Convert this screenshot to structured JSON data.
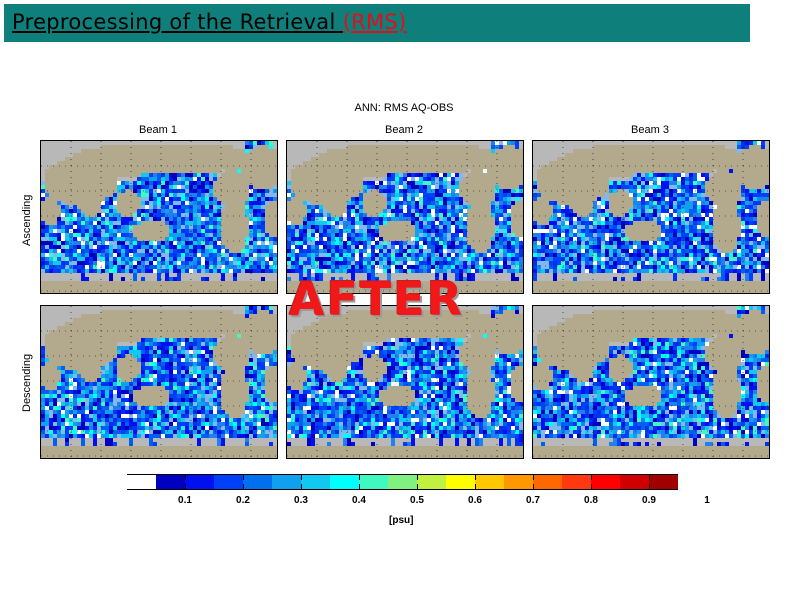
{
  "header": {
    "title": "Preprocessing of the Retrieval ",
    "title_highlight": "(RMS)",
    "bar_color": "#0f7f7b",
    "highlight_color": "#e0101a"
  },
  "figure": {
    "title": "ANN: RMS AQ-OBS",
    "columns": [
      "Beam 1",
      "Beam 2",
      "Beam 3"
    ],
    "rows": [
      "Ascending",
      "Descending"
    ],
    "overlay_text": "AFTER",
    "land_color": "#b3a98c",
    "no_data_color": "#b8b8b8"
  },
  "colorbar": {
    "unit": "[psu]",
    "tick_labels": [
      "0.1",
      "0.2",
      "0.3",
      "0.4",
      "0.5",
      "0.6",
      "0.7",
      "0.8",
      "0.9",
      "1"
    ],
    "colors": [
      "#ffffff",
      "#0000c0",
      "#0010f0",
      "#0040f8",
      "#0070f0",
      "#10a0f0",
      "#10c8f0",
      "#00ffff",
      "#40f8c0",
      "#80f080",
      "#c0f040",
      "#ffff00",
      "#ffc800",
      "#ff9800",
      "#ff6800",
      "#ff3810",
      "#ff0000",
      "#d00000",
      "#a00000"
    ]
  },
  "chart_data": {
    "type": "heatmap",
    "title": "ANN: RMS AQ-OBS",
    "subtitle": "Preprocessing of the Retrieval (RMS) — AFTER",
    "panels": [
      {
        "row": "Ascending",
        "column": "Beam 1"
      },
      {
        "row": "Ascending",
        "column": "Beam 2"
      },
      {
        "row": "Ascending",
        "column": "Beam 3"
      },
      {
        "row": "Descending",
        "column": "Beam 1"
      },
      {
        "row": "Descending",
        "column": "Beam 2"
      },
      {
        "row": "Descending",
        "column": "Beam 3"
      }
    ],
    "colorbar": {
      "label": "[psu]",
      "range": [
        0,
        1
      ],
      "ticks": [
        0.1,
        0.2,
        0.3,
        0.4,
        0.5,
        0.6,
        0.7,
        0.8,
        0.9,
        1.0
      ]
    },
    "description": "Global ocean maps of RMS of Aquarius minus observed salinity; mostly 0.05-0.3 psu (blue) over open ocean, higher (0.5-1.0 psu, yellow-red) near coasts, Gulf Stream, Amazon/river outflows and high latitudes; grey = no data, tan = land."
  }
}
